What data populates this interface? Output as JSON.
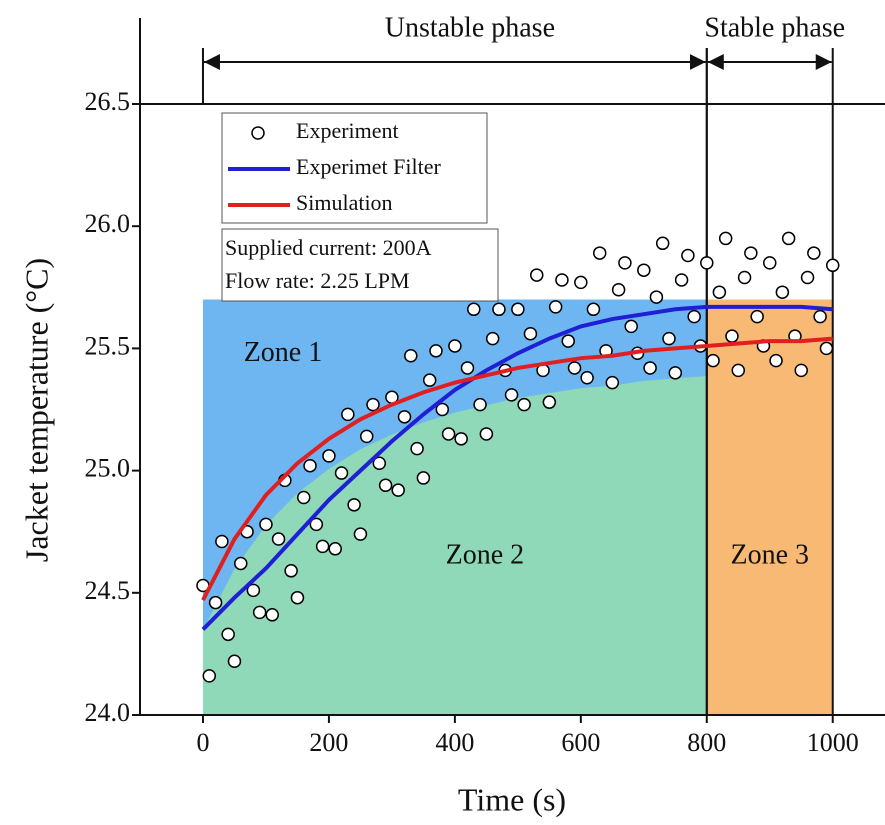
{
  "chart_data": {
    "type": "scatter",
    "xlabel": "Time (s)",
    "ylabel": "Jacket temperature (°C)",
    "xlim": [
      -100,
      1083
    ],
    "ylim": [
      24.0,
      26.5
    ],
    "xticks": [
      0,
      200,
      400,
      600,
      800,
      1000
    ],
    "yticks": [
      {
        "value": 24.0,
        "label": "24.0"
      },
      24.5,
      {
        "value": 25.0,
        "label": "25.0"
      },
      25.5,
      {
        "value": 26.0,
        "label": "26.0"
      },
      26.5
    ],
    "series": [
      {
        "name": "Experiment",
        "color": "#000000",
        "x": [
          0,
          10,
          20,
          30,
          40,
          50,
          60,
          70,
          80,
          90,
          100,
          110,
          120,
          130,
          140,
          150,
          160,
          170,
          180,
          190,
          200,
          210,
          220,
          230,
          240,
          250,
          260,
          270,
          280,
          290,
          300,
          310,
          320,
          330,
          340,
          350,
          360,
          370,
          380,
          390,
          400,
          410,
          420,
          430,
          440,
          450,
          460,
          470,
          480,
          490,
          500,
          510,
          520,
          530,
          540,
          550,
          560,
          570,
          580,
          590,
          600,
          610,
          620,
          630,
          640,
          650,
          660,
          670,
          680,
          690,
          700,
          710,
          720,
          730,
          740,
          750,
          760,
          770,
          780,
          790,
          800,
          810,
          820,
          830,
          840,
          850,
          860,
          870,
          880,
          890,
          900,
          910,
          920,
          930,
          940,
          950,
          960,
          970,
          980,
          990,
          1000
        ],
        "values": [
          24.53,
          24.16,
          24.46,
          24.71,
          24.33,
          24.22,
          24.62,
          24.75,
          24.51,
          24.42,
          24.78,
          24.41,
          24.72,
          24.96,
          24.59,
          24.48,
          24.89,
          25.02,
          24.78,
          24.69,
          25.06,
          24.68,
          24.99,
          25.23,
          24.86,
          24.74,
          25.14,
          25.27,
          25.03,
          24.94,
          25.3,
          24.92,
          25.22,
          25.47,
          25.09,
          24.97,
          25.37,
          25.49,
          25.25,
          25.15,
          25.51,
          25.13,
          25.42,
          25.66,
          25.27,
          25.15,
          25.54,
          25.66,
          25.41,
          25.31,
          25.66,
          25.27,
          25.56,
          25.8,
          25.41,
          25.28,
          25.67,
          25.78,
          25.53,
          25.42,
          25.77,
          25.38,
          25.66,
          25.89,
          25.49,
          25.36,
          25.74,
          25.85,
          25.59,
          25.48,
          25.82,
          25.42,
          25.71,
          25.93,
          25.54,
          25.4,
          25.78,
          25.88,
          25.63,
          25.51,
          25.85,
          25.45,
          25.73,
          25.95,
          25.55,
          25.41,
          25.79,
          25.89,
          25.63,
          25.51,
          25.85,
          25.45,
          25.73,
          25.95,
          25.55,
          25.41,
          25.79,
          25.89,
          25.63,
          25.5,
          25.84
        ]
      },
      {
        "name": "Experimet Filter",
        "color": "#1f1fd6",
        "x": [
          0,
          50,
          100,
          150,
          200,
          250,
          300,
          350,
          400,
          450,
          500,
          550,
          600,
          650,
          700,
          750,
          800,
          850,
          900,
          950,
          1000
        ],
        "values": [
          24.35,
          24.48,
          24.6,
          24.74,
          24.88,
          25.0,
          25.12,
          25.23,
          25.33,
          25.41,
          25.48,
          25.54,
          25.59,
          25.62,
          25.64,
          25.66,
          25.67,
          25.67,
          25.67,
          25.67,
          25.66
        ]
      },
      {
        "name": "Simulation",
        "color": "#e02020",
        "x": [
          0,
          50,
          100,
          150,
          200,
          250,
          300,
          350,
          400,
          450,
          500,
          550,
          600,
          650,
          700,
          750,
          800,
          850,
          900,
          950,
          1000
        ],
        "values": [
          24.47,
          24.72,
          24.9,
          25.03,
          25.13,
          25.21,
          25.27,
          25.32,
          25.36,
          25.39,
          25.42,
          25.44,
          25.46,
          25.47,
          25.49,
          25.5,
          25.51,
          25.52,
          25.53,
          25.53,
          25.54
        ]
      }
    ],
    "zones": [
      {
        "label": "Zone 1",
        "color": "#6db6f2",
        "x": [
          0,
          800
        ],
        "top": 25.7
      },
      {
        "label": "Zone 2",
        "color": "#8fd8b8",
        "x": [
          0,
          800
        ]
      },
      {
        "label": "Zone 3",
        "color": "#f7b974",
        "x": [
          800,
          1000
        ],
        "top": 25.7
      }
    ],
    "phases": [
      {
        "label": "Unstable phase",
        "x": [
          0,
          800
        ]
      },
      {
        "label": "Stable phase",
        "x": [
          800,
          1000
        ]
      }
    ],
    "annotations": [
      "Supplied current: 200A",
      "Flow rate: 2.25 LPM"
    ]
  }
}
